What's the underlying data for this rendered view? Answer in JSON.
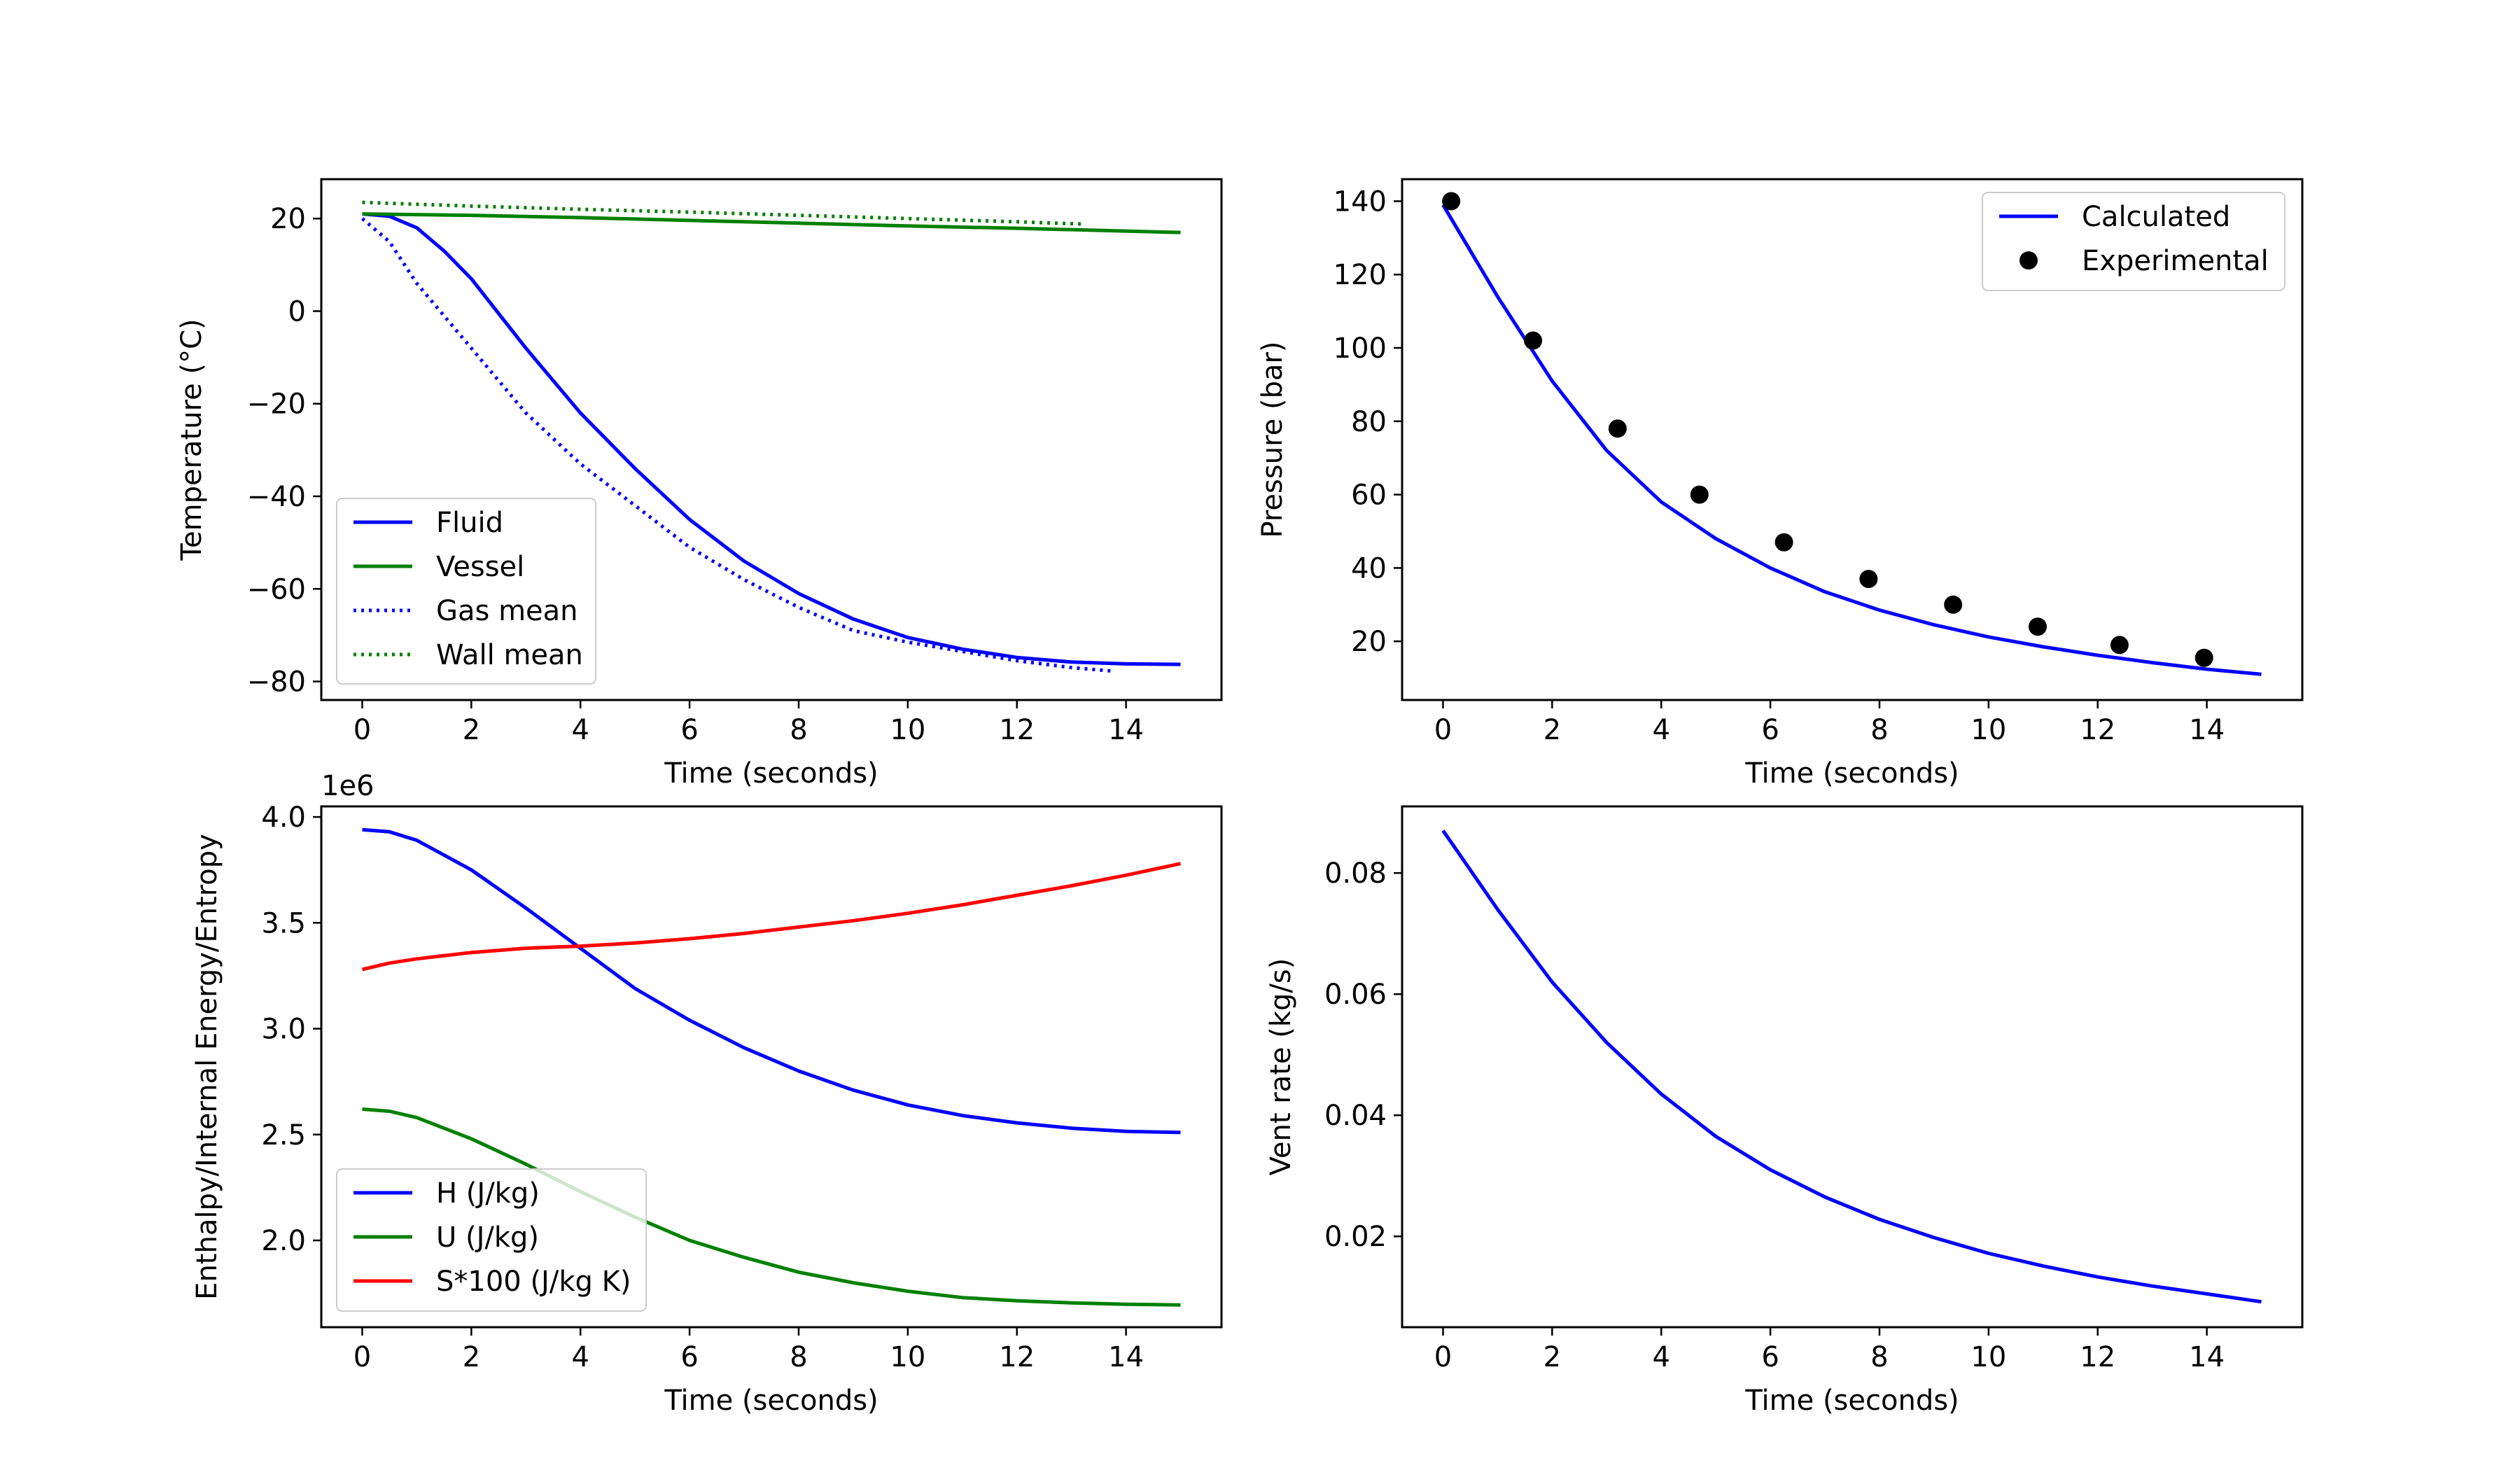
{
  "figure": {
    "background": "#ffffff"
  },
  "chart_data": [
    {
      "id": "temperature",
      "type": "line",
      "xlabel": "Time (seconds)",
      "ylabel": "Temperature (°C)",
      "xlim": [
        -0.75,
        15.75
      ],
      "ylim": [
        -84,
        28.5
      ],
      "xticks": [
        0,
        2,
        4,
        6,
        8,
        10,
        12,
        14
      ],
      "xtick_labels": [
        "0",
        "2",
        "4",
        "6",
        "8",
        "10",
        "12",
        "14"
      ],
      "yticks": [
        -80,
        -60,
        -40,
        -20,
        0,
        20
      ],
      "ytick_labels": [
        "−80",
        "−60",
        "−40",
        "−20",
        "0",
        "20"
      ],
      "legend": {
        "position": "lower-left",
        "entries": [
          "Fluid",
          "Vessel",
          "Gas mean",
          "Wall mean"
        ]
      },
      "series": [
        {
          "name": "Fluid",
          "color": "#0000ff",
          "style": "solid",
          "x": [
            0,
            0.5,
            1,
            1.5,
            2,
            3,
            4,
            5,
            6,
            7,
            8,
            9,
            10,
            11,
            12,
            13,
            14,
            15
          ],
          "y": [
            21,
            20.5,
            18,
            13,
            7,
            -8,
            -22,
            -34,
            -45,
            -54,
            -61,
            -66.5,
            -70.5,
            -73,
            -74.8,
            -75.8,
            -76.2,
            -76.3
          ]
        },
        {
          "name": "Vessel",
          "color": "#008000",
          "style": "solid",
          "x": [
            0,
            2,
            4,
            6,
            8,
            10,
            12,
            14,
            15
          ],
          "y": [
            21,
            20.7,
            20.2,
            19.6,
            19,
            18.4,
            17.9,
            17.3,
            17
          ]
        },
        {
          "name": "Gas mean",
          "color": "#0000ff",
          "style": "dotted",
          "x": [
            0,
            0.5,
            1,
            2,
            3,
            4,
            5,
            6,
            7,
            8,
            9,
            10,
            11,
            12,
            13,
            13.8
          ],
          "y": [
            20,
            15,
            6,
            -8,
            -22,
            -33,
            -42,
            -51,
            -58,
            -64,
            -69,
            -71.5,
            -73.5,
            -75.5,
            -77,
            -77.8
          ]
        },
        {
          "name": "Wall mean",
          "color": "#008000",
          "style": "dotted",
          "x": [
            0,
            2,
            4,
            6,
            8,
            10,
            12,
            13.2
          ],
          "y": [
            23.5,
            22.7,
            22,
            21.4,
            20.7,
            20,
            19.3,
            18.8
          ]
        }
      ]
    },
    {
      "id": "pressure",
      "type": "line",
      "xlabel": "Time (seconds)",
      "ylabel": "Pressure (bar)",
      "xlim": [
        -0.75,
        15.75
      ],
      "ylim": [
        4,
        146
      ],
      "xticks": [
        0,
        2,
        4,
        6,
        8,
        10,
        12,
        14
      ],
      "xtick_labels": [
        "0",
        "2",
        "4",
        "6",
        "8",
        "10",
        "12",
        "14"
      ],
      "yticks": [
        20,
        40,
        60,
        80,
        100,
        120,
        140
      ],
      "ytick_labels": [
        "20",
        "40",
        "60",
        "80",
        "100",
        "120",
        "140"
      ],
      "legend": {
        "position": "top-right",
        "entries": [
          "Calculated",
          "Experimental"
        ]
      },
      "series": [
        {
          "name": "Calculated",
          "color": "#0000ff",
          "style": "solid",
          "x": [
            0,
            1,
            2,
            3,
            4,
            5,
            6,
            7,
            8,
            9,
            10,
            11,
            12,
            13,
            14,
            15
          ],
          "y": [
            139,
            114,
            91,
            72,
            58,
            48,
            40,
            33.5,
            28.5,
            24.5,
            21.2,
            18.5,
            16.2,
            14.2,
            12.4,
            11
          ]
        },
        {
          "name": "Experimental",
          "color": "#000000",
          "style": "markers",
          "x": [
            0.15,
            1.65,
            3.2,
            4.7,
            6.25,
            7.8,
            9.35,
            10.9,
            12.4,
            13.95
          ],
          "y": [
            140,
            102,
            78,
            60,
            47,
            37,
            30,
            24,
            19,
            15.5
          ]
        }
      ]
    },
    {
      "id": "energy",
      "type": "line",
      "xlabel": "Time (seconds)",
      "ylabel": "Enthalpy/Internal Energy/Entropy",
      "offset_label": "1e6",
      "xlim": [
        -0.75,
        15.75
      ],
      "ylim": [
        1.59,
        4.05
      ],
      "xticks": [
        0,
        2,
        4,
        6,
        8,
        10,
        12,
        14
      ],
      "xtick_labels": [
        "0",
        "2",
        "4",
        "6",
        "8",
        "10",
        "12",
        "14"
      ],
      "yticks": [
        2.0,
        2.5,
        3.0,
        3.5,
        4.0
      ],
      "ytick_labels": [
        "2.0",
        "2.5",
        "3.0",
        "3.5",
        "4.0"
      ],
      "legend": {
        "position": "lower-left",
        "entries": [
          "H (J/kg)",
          "U (J/kg)",
          "S*100 (J/kg K)"
        ]
      },
      "series": [
        {
          "name": "H (J/kg)",
          "color": "#0000ff",
          "style": "solid",
          "x": [
            0,
            0.5,
            1,
            2,
            3,
            4,
            5,
            6,
            7,
            8,
            9,
            10,
            11,
            12,
            13,
            14,
            15
          ],
          "y": [
            3.94,
            3.93,
            3.89,
            3.75,
            3.57,
            3.38,
            3.19,
            3.04,
            2.91,
            2.8,
            2.71,
            2.64,
            2.59,
            2.555,
            2.53,
            2.515,
            2.51
          ]
        },
        {
          "name": "U (J/kg)",
          "color": "#008000",
          "style": "solid",
          "x": [
            0,
            0.5,
            1,
            2,
            3,
            4,
            5,
            6,
            7,
            8,
            9,
            10,
            11,
            12,
            13,
            14,
            15
          ],
          "y": [
            2.62,
            2.61,
            2.58,
            2.48,
            2.36,
            2.23,
            2.11,
            2.0,
            1.92,
            1.85,
            1.8,
            1.76,
            1.73,
            1.715,
            1.705,
            1.698,
            1.695
          ]
        },
        {
          "name": "S*100 (J/kg K)",
          "color": "#ff0000",
          "style": "solid",
          "x": [
            0,
            0.5,
            1,
            2,
            3,
            4,
            5,
            6,
            7,
            8,
            9,
            10,
            11,
            12,
            13,
            14,
            15
          ],
          "y": [
            3.28,
            3.31,
            3.33,
            3.36,
            3.38,
            3.39,
            3.405,
            3.425,
            3.45,
            3.48,
            3.51,
            3.545,
            3.585,
            3.63,
            3.675,
            3.725,
            3.78
          ]
        }
      ]
    },
    {
      "id": "vent",
      "type": "line",
      "xlabel": "Time (seconds)",
      "ylabel": "Vent rate (kg/s)",
      "xlim": [
        -0.75,
        15.75
      ],
      "ylim": [
        0.005,
        0.091
      ],
      "xticks": [
        0,
        2,
        4,
        6,
        8,
        10,
        12,
        14
      ],
      "xtick_labels": [
        "0",
        "2",
        "4",
        "6",
        "8",
        "10",
        "12",
        "14"
      ],
      "yticks": [
        0.02,
        0.04,
        0.06,
        0.08
      ],
      "ytick_labels": [
        "0.02",
        "0.04",
        "0.06",
        "0.08"
      ],
      "legend": null,
      "series": [
        {
          "name": "Vent rate",
          "color": "#0000ff",
          "style": "solid",
          "x": [
            0,
            1,
            2,
            3,
            4,
            5,
            6,
            7,
            8,
            9,
            10,
            11,
            12,
            13,
            14,
            15
          ],
          "y": [
            0.087,
            0.074,
            0.062,
            0.052,
            0.0435,
            0.0365,
            0.031,
            0.0265,
            0.0228,
            0.0198,
            0.0172,
            0.0151,
            0.0133,
            0.0118,
            0.0105,
            0.0092
          ]
        }
      ]
    }
  ]
}
